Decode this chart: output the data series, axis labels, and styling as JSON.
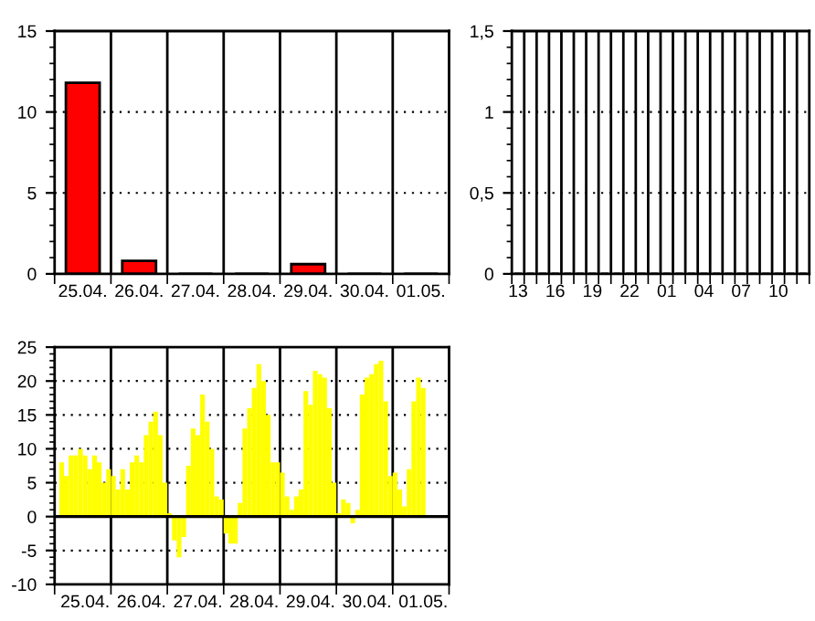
{
  "chart_data": [
    {
      "type": "bar",
      "categories": [
        "25.04.",
        "26.04.",
        "27.04.",
        "28.04.",
        "29.04.",
        "30.04.",
        "01.05."
      ],
      "values": [
        11.8,
        0.8,
        0,
        0,
        0.6,
        0,
        0
      ],
      "color": "#ff0000",
      "ylim": [
        0,
        15
      ],
      "yticks": [
        0,
        5,
        10,
        15
      ],
      "grid": true
    },
    {
      "type": "bar",
      "categories": [
        "13",
        null,
        null,
        "16",
        null,
        null,
        "19",
        null,
        null,
        "22",
        null,
        null,
        "01",
        null,
        null,
        "04",
        null,
        null,
        "07",
        null,
        null,
        "10",
        null,
        null
      ],
      "values": [
        0,
        0,
        0,
        0,
        0,
        0,
        0,
        0,
        0,
        0,
        0,
        0,
        0,
        0,
        0,
        0,
        0,
        0,
        0,
        0,
        0,
        0,
        0,
        0
      ],
      "color": "#ff0000",
      "ylim": [
        0,
        1.5
      ],
      "yticks": [
        0,
        {
          "value": 0.5,
          "label": "0,5"
        },
        1,
        {
          "value": 1.5,
          "label": "1,5"
        }
      ],
      "grid": true
    },
    {
      "type": "bar",
      "categories": [
        null,
        null,
        null,
        null,
        null,
        null,
        "25.04.",
        null,
        null,
        null,
        null,
        null,
        null,
        null,
        null,
        null,
        null,
        null,
        "26.04.",
        null,
        null,
        null,
        null,
        null,
        null,
        null,
        null,
        null,
        null,
        null,
        "27.04.",
        null,
        null,
        null,
        null,
        null,
        null,
        null,
        null,
        null,
        null,
        null,
        "28.04.",
        null,
        null,
        null,
        null,
        null,
        null,
        null,
        null,
        null,
        null,
        null,
        "29.04.",
        null,
        null,
        null,
        null,
        null,
        null,
        null,
        null,
        null,
        null,
        null,
        "30.04.",
        null,
        null,
        null,
        null,
        null,
        null,
        null,
        null,
        null,
        null,
        null,
        "01.05.",
        null,
        null,
        null,
        null,
        null
      ],
      "values": [
        null,
        8,
        6,
        9,
        9,
        10,
        9,
        7,
        9,
        8,
        5,
        7,
        6,
        4,
        7,
        4,
        8,
        9,
        8,
        12,
        14,
        15.5,
        12,
        5,
        0.5,
        -3.5,
        -6,
        -3,
        7.5,
        13,
        12,
        18,
        14,
        10,
        3,
        2.5,
        -2.5,
        -4,
        -4,
        2,
        13,
        16,
        19,
        22.5,
        20,
        15,
        8,
        8,
        6.5,
        3,
        1,
        3,
        4,
        18.5,
        16.5,
        21.5,
        21,
        20.5,
        16,
        5,
        0.5,
        2.5,
        2,
        -1,
        1,
        18,
        20.5,
        21,
        22.5,
        23,
        17,
        6,
        6.5,
        4,
        1.5,
        7,
        17,
        20.5,
        19,
        null,
        null,
        null,
        null,
        null
      ],
      "color": "#ffff00",
      "ylim": [
        -10,
        25
      ],
      "yticks": [
        -10,
        -5,
        0,
        5,
        10,
        15,
        20,
        25
      ],
      "grid": true,
      "ref_lines": [
        {
          "axis": "y",
          "value": 0,
          "label": null
        }
      ]
    }
  ]
}
